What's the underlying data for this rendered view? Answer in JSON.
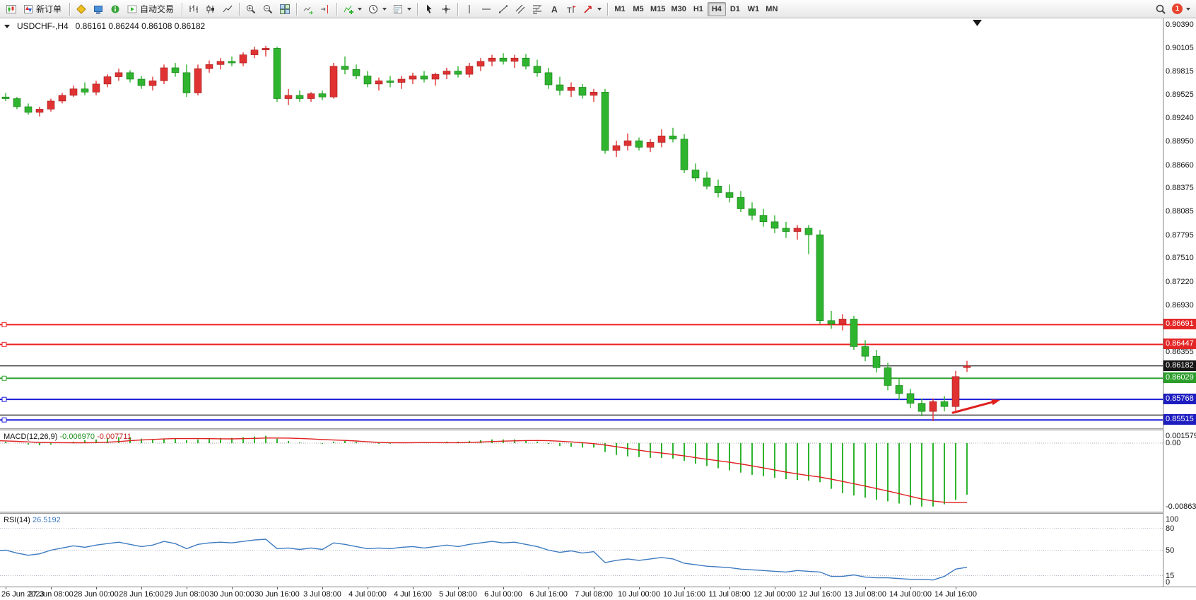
{
  "toolbar": {
    "new_order_label": "新订单",
    "auto_trading_label": "自动交易",
    "timeframes": [
      "M1",
      "M5",
      "M15",
      "M30",
      "H1",
      "H4",
      "D1",
      "W1",
      "MN"
    ],
    "active_timeframe": "H4",
    "notification_count": "1"
  },
  "chart": {
    "symbol": "USDCHF-,H4",
    "ohlc": "0.86161 0.86244 0.86108 0.86182"
  },
  "indicators": {
    "macd": {
      "name": "MACD(12,26,9)",
      "value_main": "-0.006970",
      "value_signal": "-0.007711"
    },
    "rsi": {
      "name": "RSI(14)",
      "value": "26.5192"
    }
  },
  "chart_data": [
    {
      "type": "candlestick",
      "title": "USDCHF-,H4",
      "ohlc_current": {
        "open": 0.86161,
        "high": 0.86244,
        "low": 0.86108,
        "close": 0.86182
      },
      "ylim": [
        0.85412,
        0.9047
      ],
      "up_color": "#e03232",
      "down_color": "#2fb42f",
      "y_ticks": [
        "0.90390",
        "0.90105",
        "0.89815",
        "0.89525",
        "0.89240",
        "0.88950",
        "0.88660",
        "0.88375",
        "0.88085",
        "0.87795",
        "0.87510",
        "0.87220",
        "0.86930",
        "0.86355"
      ],
      "x_labels": [
        "26 Jun 2023",
        "27 Jun 08:00",
        "28 Jun 00:00",
        "28 Jun 16:00",
        "29 Jun 08:00",
        "30 Jun 00:00",
        "30 Jun 16:00",
        "3 Jul 08:00",
        "4 Jul 00:00",
        "4 Jul 16:00",
        "5 Jul 08:00",
        "6 Jul 00:00",
        "6 Jul 16:00",
        "7 Jul 08:00",
        "10 Jul 00:00",
        "10 Jul 16:00",
        "11 Jul 08:00",
        "12 Jul 00:00",
        "12 Jul 16:00",
        "13 Jul 08:00",
        "14 Jul 00:00",
        "14 Jul 16:00"
      ],
      "hlines": [
        {
          "price": 0.86691,
          "color": "#f02020",
          "width": 2,
          "tag": "0.86691",
          "tag_bg": "#e42525",
          "handle": true
        },
        {
          "price": 0.86447,
          "color": "#f02020",
          "width": 2,
          "tag": "0.86447",
          "tag_bg": "#e42525",
          "handle": true
        },
        {
          "price": 0.86182,
          "color": "#3c3c3c",
          "width": 1.4,
          "tag": "0.86182",
          "tag_bg": "#151515",
          "handle": false
        },
        {
          "price": 0.86029,
          "color": "#2fa32f",
          "width": 2,
          "tag": "0.86029",
          "tag_bg": "#2b9e2b",
          "handle": true
        },
        {
          "price": 0.85768,
          "color": "#1c1cd8",
          "width": 2,
          "tag": "0.85768",
          "tag_bg": "#1d1dc0",
          "handle": true
        },
        {
          "price": 0.85575,
          "color": "#3c3c3c",
          "width": 1.4,
          "handle": false
        },
        {
          "price": 0.85515,
          "color": "#1c1cd8",
          "width": 2,
          "tag": "0.85515",
          "tag_bg": "#1d1dc0",
          "handle": true
        }
      ],
      "arrow": {
        "color": "#e01f1f",
        "line": [
          1348,
          558,
          1404,
          543
        ],
        "head": [
          1415,
          540,
          1404.5,
          547.2,
          1402.3,
          539.1
        ]
      },
      "candles": [
        [
          0.8948,
          0.8958,
          0.8944,
          0.8953
        ],
        [
          0.8953,
          0.8956,
          0.8944,
          0.8947
        ],
        [
          0.8947,
          0.8952,
          0.894,
          0.895
        ],
        [
          0.895,
          0.8955,
          0.8945,
          0.8948
        ],
        [
          0.8948,
          0.895,
          0.8935,
          0.8938
        ],
        [
          0.8938,
          0.8942,
          0.8928,
          0.8931
        ],
        [
          0.8931,
          0.8938,
          0.8926,
          0.8935
        ],
        [
          0.8935,
          0.8948,
          0.8932,
          0.8945
        ],
        [
          0.8945,
          0.8955,
          0.8942,
          0.8952
        ],
        [
          0.8952,
          0.8964,
          0.895,
          0.896
        ],
        [
          0.896,
          0.8968,
          0.8952,
          0.8956
        ],
        [
          0.8956,
          0.897,
          0.8952,
          0.8966
        ],
        [
          0.8966,
          0.8978,
          0.8962,
          0.8975
        ],
        [
          0.8975,
          0.8985,
          0.897,
          0.898
        ],
        [
          0.898,
          0.8983,
          0.8968,
          0.8972
        ],
        [
          0.8972,
          0.8976,
          0.896,
          0.8964
        ],
        [
          0.8964,
          0.8975,
          0.8958,
          0.897
        ],
        [
          0.897,
          0.899,
          0.8966,
          0.8986
        ],
        [
          0.8986,
          0.8992,
          0.8975,
          0.898
        ],
        [
          0.898,
          0.899,
          0.895,
          0.8955
        ],
        [
          0.8955,
          0.899,
          0.8952,
          0.8985
        ],
        [
          0.8985,
          0.8995,
          0.898,
          0.899
        ],
        [
          0.899,
          0.8998,
          0.8984,
          0.8994
        ],
        [
          0.8994,
          0.9,
          0.8988,
          0.8992
        ],
        [
          0.8992,
          0.9005,
          0.8988,
          0.9002
        ],
        [
          0.9002,
          0.9012,
          0.8998,
          0.9008
        ],
        [
          0.9008,
          0.9013,
          0.9,
          0.901
        ],
        [
          0.901,
          0.9012,
          0.8944,
          0.8948
        ],
        [
          0.8948,
          0.896,
          0.894,
          0.8952
        ],
        [
          0.8952,
          0.8958,
          0.8944,
          0.8948
        ],
        [
          0.8948,
          0.8956,
          0.8944,
          0.8954
        ],
        [
          0.8954,
          0.8958,
          0.8946,
          0.895
        ],
        [
          0.895,
          0.8992,
          0.8948,
          0.8988
        ],
        [
          0.8988,
          0.9,
          0.8978,
          0.8984
        ],
        [
          0.8984,
          0.899,
          0.8972,
          0.8976
        ],
        [
          0.8976,
          0.8982,
          0.8962,
          0.8966
        ],
        [
          0.8966,
          0.8974,
          0.8958,
          0.897
        ],
        [
          0.897,
          0.8976,
          0.8962,
          0.8968
        ],
        [
          0.8968,
          0.8976,
          0.896,
          0.8972
        ],
        [
          0.8972,
          0.898,
          0.8966,
          0.8976
        ],
        [
          0.8976,
          0.8982,
          0.8968,
          0.8972
        ],
        [
          0.8972,
          0.898,
          0.8964,
          0.8978
        ],
        [
          0.8978,
          0.8986,
          0.8972,
          0.8982
        ],
        [
          0.8982,
          0.8988,
          0.8974,
          0.8978
        ],
        [
          0.8978,
          0.8992,
          0.8974,
          0.8988
        ],
        [
          0.8988,
          0.8998,
          0.8982,
          0.8994
        ],
        [
          0.8994,
          0.9002,
          0.8988,
          0.8998
        ],
        [
          0.8998,
          0.9004,
          0.899,
          0.8994
        ],
        [
          0.8994,
          0.9002,
          0.8986,
          0.8998
        ],
        [
          0.8998,
          0.9003,
          0.8984,
          0.8988
        ],
        [
          0.8988,
          0.8996,
          0.8975,
          0.898
        ],
        [
          0.898,
          0.8986,
          0.896,
          0.8965
        ],
        [
          0.8965,
          0.8975,
          0.8952,
          0.8958
        ],
        [
          0.8958,
          0.8968,
          0.895,
          0.8962
        ],
        [
          0.8962,
          0.8966,
          0.8948,
          0.8952
        ],
        [
          0.8952,
          0.896,
          0.8944,
          0.8956
        ],
        [
          0.8956,
          0.896,
          0.888,
          0.8884
        ],
        [
          0.8884,
          0.8896,
          0.8876,
          0.889
        ],
        [
          0.889,
          0.8905,
          0.8884,
          0.8896
        ],
        [
          0.8896,
          0.89,
          0.8884,
          0.8888
        ],
        [
          0.8888,
          0.8898,
          0.8882,
          0.8894
        ],
        [
          0.8894,
          0.891,
          0.8888,
          0.8902
        ],
        [
          0.8902,
          0.8912,
          0.8894,
          0.8898
        ],
        [
          0.8898,
          0.8904,
          0.8856,
          0.886
        ],
        [
          0.886,
          0.8868,
          0.8846,
          0.885
        ],
        [
          0.885,
          0.8858,
          0.8836,
          0.884
        ],
        [
          0.884,
          0.8848,
          0.8826,
          0.8832
        ],
        [
          0.8832,
          0.8842,
          0.882,
          0.8826
        ],
        [
          0.8826,
          0.8834,
          0.8808,
          0.8812
        ],
        [
          0.8812,
          0.882,
          0.8798,
          0.8804
        ],
        [
          0.8804,
          0.8812,
          0.879,
          0.8796
        ],
        [
          0.8796,
          0.8804,
          0.8782,
          0.8788
        ],
        [
          0.8788,
          0.8796,
          0.8776,
          0.8784
        ],
        [
          0.8784,
          0.8792,
          0.8774,
          0.8788
        ],
        [
          0.8788,
          0.8792,
          0.8756,
          0.878
        ],
        [
          0.878,
          0.8786,
          0.867,
          0.8674
        ],
        [
          0.8674,
          0.8686,
          0.8664,
          0.867
        ],
        [
          0.867,
          0.8682,
          0.8662,
          0.8676
        ],
        [
          0.8676,
          0.868,
          0.8638,
          0.8642
        ],
        [
          0.8642,
          0.865,
          0.8624,
          0.863
        ],
        [
          0.863,
          0.8638,
          0.861,
          0.8616
        ],
        [
          0.8616,
          0.8622,
          0.8588,
          0.8594
        ],
        [
          0.8594,
          0.8602,
          0.8576,
          0.8584
        ],
        [
          0.8584,
          0.859,
          0.8566,
          0.8572
        ],
        [
          0.8572,
          0.8578,
          0.8556,
          0.8562
        ],
        [
          0.8562,
          0.8578,
          0.855,
          0.8574
        ],
        [
          0.8574,
          0.8581,
          0.8562,
          0.8568
        ],
        [
          0.8568,
          0.8612,
          0.8562,
          0.8605
        ],
        [
          0.86161,
          0.86244,
          0.86108,
          0.86182
        ]
      ]
    },
    {
      "type": "bar",
      "name": "MACD",
      "label": "MACD(12,26,9) -0.006970 -0.007711",
      "ylim": [
        -0.009302,
        0.001726
      ],
      "bar_color": "#2fb42f",
      "signal_color": "#e02020",
      "y_ticks": [
        "0.001579",
        "0.00",
        "-0.008633"
      ],
      "values": [
        0.0003,
        0.0004,
        0.0003,
        0.0002,
        0.0,
        -0.0002,
        -0.0003,
        -0.0002,
        0.0,
        0.0002,
        0.0004,
        0.0005,
        0.0007,
        0.0008,
        0.0008,
        0.0006,
        0.0005,
        0.0006,
        0.0006,
        0.0004,
        0.0005,
        0.0006,
        0.0007,
        0.0007,
        0.0008,
        0.0009,
        0.001,
        0.0006,
        0.0003,
        0.0001,
        0.0,
        -0.0001,
        0.0002,
        0.0003,
        0.0002,
        0.0,
        -0.0001,
        -0.0001,
        0.0,
        0.0001,
        0.0001,
        0.0001,
        0.0002,
        0.0002,
        0.0003,
        0.0004,
        0.0005,
        0.0005,
        0.0005,
        0.0004,
        0.0002,
        -0.0001,
        -0.0004,
        -0.0005,
        -0.0006,
        -0.0006,
        -0.0012,
        -0.0016,
        -0.0018,
        -0.0019,
        -0.002,
        -0.002,
        -0.0021,
        -0.0024,
        -0.0028,
        -0.0031,
        -0.0034,
        -0.0037,
        -0.004,
        -0.0043,
        -0.0045,
        -0.0047,
        -0.0049,
        -0.005,
        -0.0051,
        -0.0053,
        -0.0062,
        -0.0068,
        -0.0071,
        -0.0074,
        -0.0077,
        -0.0079,
        -0.0082,
        -0.0084,
        -0.0086,
        -0.0086,
        -0.0083,
        -0.0077,
        -0.007
      ]
    },
    {
      "type": "line",
      "name": "RSI",
      "label": "RSI(14) 26.5192",
      "ylim": [
        0,
        100
      ],
      "levels": [
        80,
        50,
        15
      ],
      "y_ticks": [
        "100",
        "80",
        "50",
        "15",
        "0"
      ],
      "line_color": "#3d7ac0",
      "values": [
        50,
        52,
        49,
        50,
        46,
        43,
        45,
        50,
        53,
        56,
        54,
        57,
        59,
        61,
        58,
        55,
        57,
        62,
        59,
        52,
        58,
        60,
        61,
        60,
        62,
        64,
        65,
        52,
        53,
        51,
        53,
        51,
        60,
        58,
        55,
        52,
        53,
        52,
        54,
        55,
        53,
        55,
        57,
        55,
        58,
        60,
        62,
        60,
        61,
        58,
        55,
        50,
        47,
        49,
        46,
        48,
        33,
        36,
        38,
        36,
        38,
        40,
        38,
        32,
        30,
        28,
        27,
        26,
        24,
        23,
        22,
        21,
        20,
        22,
        21,
        20,
        14,
        14,
        16,
        13,
        12,
        12,
        11,
        10,
        10,
        9,
        14,
        24,
        26.5192
      ]
    }
  ]
}
